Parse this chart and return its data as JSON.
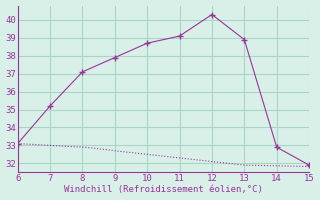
{
  "x_upper": [
    6,
    7,
    8,
    9,
    10,
    11,
    12,
    13,
    14,
    15
  ],
  "y_upper": [
    33.1,
    35.2,
    37.1,
    37.9,
    38.7,
    39.1,
    40.3,
    38.9,
    32.9,
    31.9
  ],
  "x_lower": [
    6,
    6.1,
    6.2,
    6.3,
    6.4,
    6.5,
    6.6,
    6.7,
    6.8,
    6.9,
    7,
    7.1,
    7.2,
    7.3,
    7.4,
    7.5,
    7.6,
    7.7,
    7.8,
    7.9,
    8,
    8.1,
    8.2,
    8.3,
    8.4,
    8.5,
    8.6,
    8.7,
    8.8,
    8.9,
    9,
    9.1,
    9.2,
    9.3,
    9.4,
    9.5,
    9.6,
    9.7,
    9.8,
    9.9,
    10,
    10.1,
    10.2,
    10.3,
    10.4,
    10.5,
    10.6,
    10.7,
    10.8,
    10.9,
    11,
    11.1,
    11.2,
    11.3,
    11.4,
    11.5,
    11.6,
    11.7,
    11.8,
    11.9,
    12,
    12.1,
    12.2,
    12.3,
    12.4,
    12.5,
    12.6,
    12.7,
    12.8,
    12.9,
    13,
    13.5,
    14,
    14.5,
    15
  ],
  "y_lower": [
    33.1,
    33.09,
    33.08,
    33.07,
    33.06,
    33.05,
    33.04,
    33.03,
    33.02,
    33.01,
    33.0,
    32.99,
    32.98,
    32.97,
    32.96,
    32.95,
    32.94,
    32.93,
    32.92,
    32.91,
    32.9,
    32.89,
    32.87,
    32.85,
    32.83,
    32.81,
    32.79,
    32.77,
    32.75,
    32.73,
    32.7,
    32.68,
    32.66,
    32.64,
    32.62,
    32.6,
    32.58,
    32.56,
    32.54,
    32.52,
    32.5,
    32.48,
    32.46,
    32.44,
    32.42,
    32.4,
    32.38,
    32.36,
    32.34,
    32.32,
    32.3,
    32.28,
    32.26,
    32.24,
    32.22,
    32.2,
    32.18,
    32.16,
    32.14,
    32.12,
    32.1,
    32.08,
    32.06,
    32.04,
    32.02,
    32.0,
    31.98,
    31.96,
    31.94,
    31.92,
    31.9,
    31.88,
    31.86,
    31.84,
    31.82
  ],
  "marker_x": [
    6,
    7,
    8,
    9,
    10,
    11,
    12,
    13,
    14,
    15
  ],
  "marker_y": [
    33.1,
    35.2,
    37.1,
    37.9,
    38.7,
    39.1,
    40.3,
    38.9,
    32.9,
    31.9
  ],
  "line_color": "#993399",
  "bg_color": "#d8f0e8",
  "grid_color": "#aad4c4",
  "xlabel": "Windchill (Refroidissement éolien,°C)",
  "xlabel_color": "#993399",
  "tick_color": "#993399",
  "spine_color": "#993399",
  "xlim": [
    6,
    15
  ],
  "ylim": [
    31.5,
    40.8
  ],
  "yticks": [
    32,
    33,
    34,
    35,
    36,
    37,
    38,
    39,
    40
  ],
  "xticks": [
    6,
    7,
    8,
    9,
    10,
    11,
    12,
    13,
    14,
    15
  ]
}
